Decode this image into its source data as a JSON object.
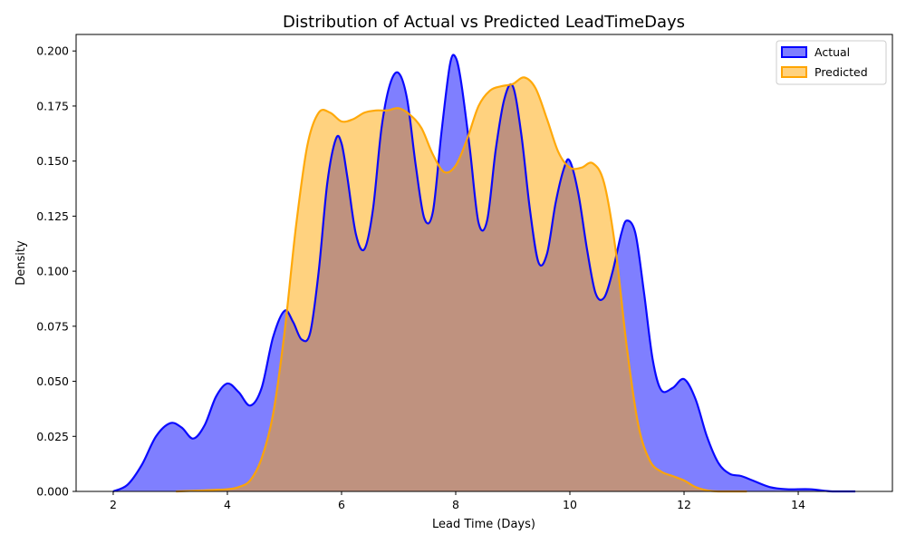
{
  "chart_data": {
    "type": "area",
    "title": "Distribution of Actual vs Predicted LeadTimeDays",
    "xlabel": "Lead Time (Days)",
    "ylabel": "Density",
    "xlim": [
      1.35,
      15.65
    ],
    "ylim": [
      0,
      0.2075
    ],
    "xticks": [
      2,
      4,
      6,
      8,
      10,
      12,
      14
    ],
    "xtick_labels": [
      "2",
      "4",
      "6",
      "8",
      "10",
      "12",
      "14"
    ],
    "yticks": [
      0,
      0.025,
      0.05,
      0.075,
      0.1,
      0.125,
      0.15,
      0.175,
      0.2
    ],
    "ytick_labels": [
      "0.000",
      "0.025",
      "0.050",
      "0.075",
      "0.100",
      "0.125",
      "0.150",
      "0.175",
      "0.200"
    ],
    "grid": false,
    "legend_position": "top-right",
    "series": [
      {
        "name": "Actual",
        "line_color": "#0000ff",
        "fill_color": "#0000ff",
        "fill_opacity": 0.5,
        "x": [
          2.0,
          2.25,
          2.5,
          2.75,
          3.0,
          3.2,
          3.4,
          3.6,
          3.8,
          4.0,
          4.2,
          4.4,
          4.6,
          4.8,
          5.0,
          5.15,
          5.3,
          5.45,
          5.6,
          5.75,
          5.9,
          6.0,
          6.1,
          6.25,
          6.4,
          6.55,
          6.7,
          6.85,
          7.0,
          7.15,
          7.3,
          7.45,
          7.6,
          7.75,
          7.9,
          8.0,
          8.1,
          8.25,
          8.4,
          8.55,
          8.7,
          8.85,
          9.0,
          9.15,
          9.3,
          9.45,
          9.6,
          9.75,
          9.9,
          10.0,
          10.15,
          10.3,
          10.45,
          10.6,
          10.75,
          10.9,
          11.0,
          11.15,
          11.3,
          11.45,
          11.6,
          11.8,
          12.0,
          12.2,
          12.4,
          12.6,
          12.8,
          13.0,
          13.2,
          13.5,
          13.8,
          14.2,
          14.6,
          15.0
        ],
        "y": [
          0.0,
          0.003,
          0.012,
          0.025,
          0.031,
          0.029,
          0.024,
          0.03,
          0.043,
          0.049,
          0.045,
          0.039,
          0.047,
          0.07,
          0.082,
          0.077,
          0.069,
          0.072,
          0.1,
          0.14,
          0.16,
          0.158,
          0.143,
          0.117,
          0.11,
          0.128,
          0.165,
          0.185,
          0.19,
          0.178,
          0.148,
          0.124,
          0.127,
          0.163,
          0.194,
          0.197,
          0.185,
          0.155,
          0.122,
          0.123,
          0.155,
          0.178,
          0.184,
          0.162,
          0.128,
          0.104,
          0.108,
          0.131,
          0.147,
          0.15,
          0.135,
          0.11,
          0.09,
          0.088,
          0.1,
          0.117,
          0.123,
          0.117,
          0.09,
          0.06,
          0.046,
          0.047,
          0.051,
          0.042,
          0.025,
          0.013,
          0.008,
          0.007,
          0.005,
          0.002,
          0.001,
          0.001,
          0.0,
          0.0
        ]
      },
      {
        "name": "Predicted",
        "line_color": "#ffa500",
        "fill_color": "#ffa500",
        "fill_opacity": 0.5,
        "x": [
          3.1,
          3.6,
          4.0,
          4.2,
          4.4,
          4.6,
          4.8,
          5.0,
          5.2,
          5.4,
          5.6,
          5.8,
          6.0,
          6.2,
          6.4,
          6.6,
          6.8,
          7.0,
          7.2,
          7.4,
          7.6,
          7.8,
          8.0,
          8.2,
          8.4,
          8.6,
          8.8,
          9.0,
          9.2,
          9.4,
          9.6,
          9.8,
          10.0,
          10.2,
          10.4,
          10.6,
          10.8,
          11.0,
          11.2,
          11.4,
          11.6,
          11.8,
          12.0,
          12.2,
          12.4,
          12.6,
          12.8,
          13.1
        ],
        "y": [
          0.0,
          0.0005,
          0.001,
          0.002,
          0.005,
          0.015,
          0.035,
          0.072,
          0.12,
          0.157,
          0.172,
          0.172,
          0.168,
          0.169,
          0.172,
          0.173,
          0.173,
          0.174,
          0.171,
          0.165,
          0.153,
          0.145,
          0.148,
          0.16,
          0.175,
          0.182,
          0.184,
          0.185,
          0.188,
          0.183,
          0.169,
          0.154,
          0.147,
          0.147,
          0.149,
          0.14,
          0.11,
          0.065,
          0.03,
          0.014,
          0.009,
          0.007,
          0.005,
          0.002,
          0.0005,
          0.0,
          0.0,
          0.0
        ]
      }
    ]
  }
}
